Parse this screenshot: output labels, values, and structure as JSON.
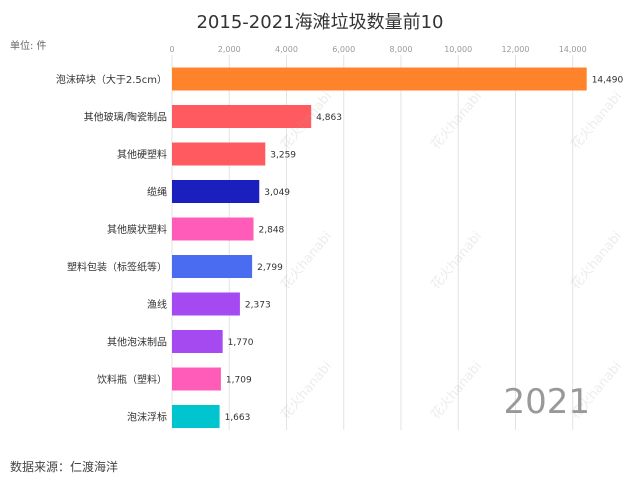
{
  "title": "2015-2021海滩垃圾数量前10",
  "unit_label": "单位: 件",
  "source": "数据来源：仁渡海洋",
  "year_label": "2021",
  "watermark": "花火hanabi",
  "colors": {
    "axis_text": "#999999",
    "grid": "#e3e3e3",
    "label_text": "#333333"
  },
  "chart_data": {
    "type": "bar",
    "orientation": "horizontal",
    "title": "2015-2021海滩垃圾数量前10",
    "xlim": [
      0,
      14500
    ],
    "x_ticks": [
      0,
      2000,
      4000,
      6000,
      8000,
      10000,
      12000,
      14000
    ],
    "x_tick_labels": [
      "0",
      "2,000",
      "4,000",
      "6,000",
      "8,000",
      "10,000",
      "12,000",
      "14,000"
    ],
    "categories": [
      "泡沫碎块（大于2.5cm）",
      "其他玻璃/陶瓷制品",
      "其他硬塑料",
      "缆绳",
      "其他膜状塑料",
      "塑料包装（标签纸等）",
      "渔线",
      "其他泡沫制品",
      "饮料瓶（塑料）",
      "泡沫浮标"
    ],
    "values": [
      14490,
      4863,
      3259,
      3049,
      2848,
      2799,
      2373,
      1770,
      1709,
      1663
    ],
    "value_labels": [
      "14,490",
      "4,863",
      "3,259",
      "3,049",
      "2,848",
      "2,799",
      "2,373",
      "1,770",
      "1,709",
      "1,663"
    ],
    "bar_colors": [
      "#ff832b",
      "#ff5a5f",
      "#ff5a5f",
      "#1a1fbd",
      "#ff5bb8",
      "#4a6cf0",
      "#a44af0",
      "#a44af0",
      "#ff5bb8",
      "#00c5cf"
    ]
  }
}
